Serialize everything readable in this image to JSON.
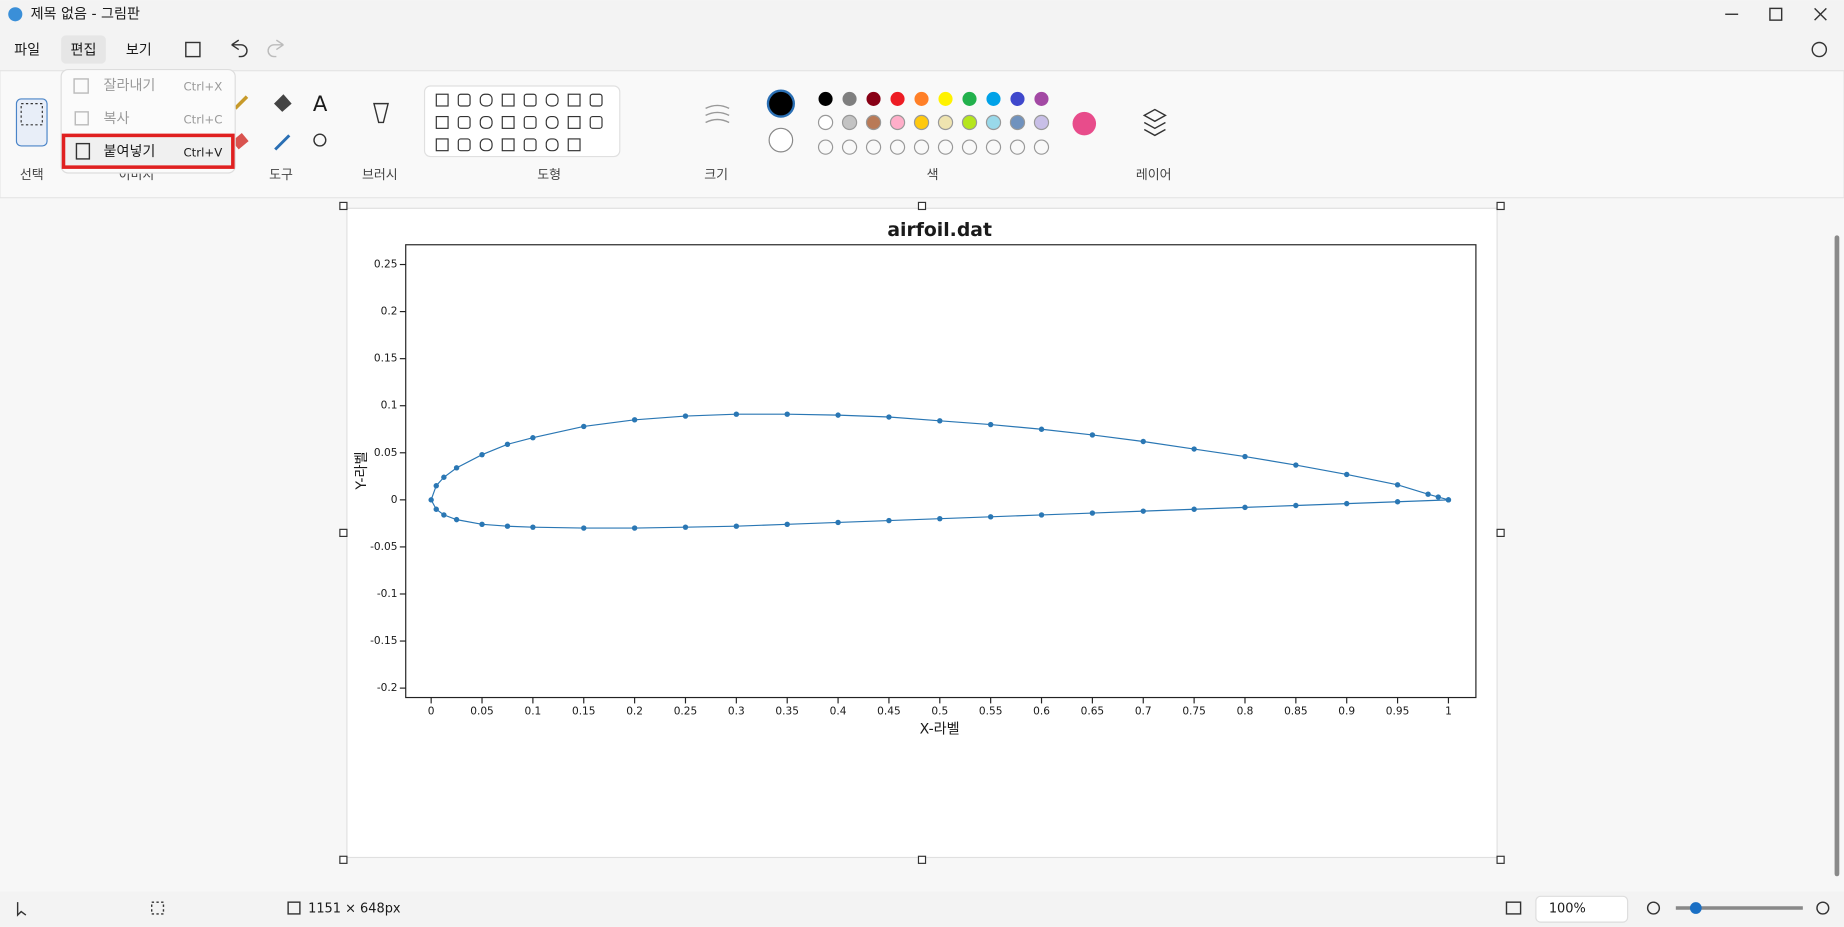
{
  "window": {
    "title": "제목 없음 - 그림판"
  },
  "menu": [
    "파일",
    "편집",
    "보기"
  ],
  "edit_menu": [
    {
      "label": "잘라내기",
      "shortcut": "Ctrl+X"
    },
    {
      "label": "복사",
      "shortcut": "Ctrl+C"
    },
    {
      "label": "붙여넣기",
      "shortcut": "Ctrl+V"
    }
  ],
  "ribbon_groups": [
    "선택",
    "이미지",
    "도구",
    "브러시",
    "도형",
    "크기",
    "색",
    "레이어"
  ],
  "status": {
    "size": "1151 × 648px",
    "zoom": "100%"
  },
  "chart_data": {
    "type": "line",
    "title": "airfoil.dat",
    "x_label": "X-라벨",
    "y_label": "Y-라벨",
    "color": "#2a77b4",
    "markers": true,
    "x": [
      1.0,
      0.99,
      0.98,
      0.95,
      0.9,
      0.85,
      0.8,
      0.75,
      0.7,
      0.65,
      0.6,
      0.55,
      0.5,
      0.45,
      0.4,
      0.35,
      0.3,
      0.25,
      0.2,
      0.15,
      0.1,
      0.075,
      0.05,
      0.025,
      0.0125,
      0.005,
      0.0,
      0.005,
      0.0125,
      0.025,
      0.05,
      0.075,
      0.1,
      0.15,
      0.2,
      0.25,
      0.3,
      0.35,
      0.4,
      0.45,
      0.5,
      0.55,
      0.6,
      0.65,
      0.7,
      0.75,
      0.8,
      0.85,
      0.9,
      0.95,
      1.0
    ],
    "values": [
      0.0,
      0.003,
      0.006,
      0.016,
      0.027,
      0.037,
      0.046,
      0.054,
      0.062,
      0.069,
      0.075,
      0.08,
      0.084,
      0.088,
      0.09,
      0.091,
      0.091,
      0.089,
      0.085,
      0.078,
      0.066,
      0.059,
      0.048,
      0.034,
      0.024,
      0.015,
      0.0,
      -0.01,
      -0.016,
      -0.021,
      -0.026,
      -0.028,
      -0.029,
      -0.03,
      -0.03,
      -0.029,
      -0.028,
      -0.026,
      -0.024,
      -0.022,
      -0.02,
      -0.018,
      -0.016,
      -0.014,
      -0.012,
      -0.01,
      -0.008,
      -0.006,
      -0.004,
      -0.002,
      0.0
    ],
    "xlim": [
      -0.025,
      1.027
    ],
    "ylim": [
      -0.21,
      0.271
    ],
    "xticks": [
      0,
      0.05,
      0.1,
      0.15,
      0.2,
      0.25,
      0.3,
      0.35,
      0.4,
      0.45,
      0.5,
      0.55,
      0.6,
      0.65,
      0.7,
      0.75,
      0.8,
      0.85,
      0.9,
      0.95,
      1
    ],
    "yticks": [
      -0.2,
      -0.15,
      -0.1,
      -0.05,
      0,
      0.05,
      0.1,
      0.15,
      0.2,
      0.25
    ]
  }
}
